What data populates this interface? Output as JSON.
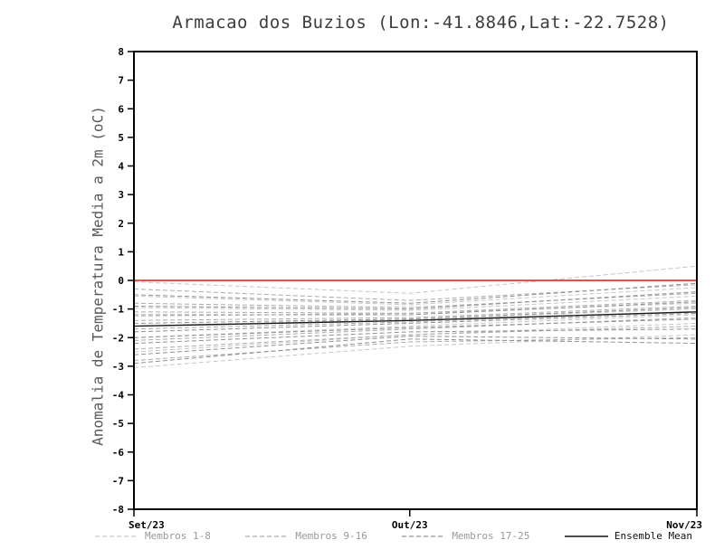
{
  "chart_data": {
    "type": "line",
    "title": "Armacao dos Buzios (Lon:-41.8846,Lat:-22.7528)",
    "ylabel": "Anomalia de Temperatura Media a 2m (oC)",
    "xlabel": "",
    "ylim": [
      -8,
      8
    ],
    "ytick_step": 1,
    "grid": false,
    "x_labels": [
      "Set/23",
      "Out/23",
      "Nov/23"
    ],
    "x_positions": [
      0,
      0.49,
      1
    ],
    "zero_line": {
      "y": 0,
      "color": "#e03a30"
    },
    "groups": [
      {
        "name": "Membros 1-8",
        "color": "#c6c6c6"
      },
      {
        "name": "Membros 9-16",
        "color": "#ababab"
      },
      {
        "name": "Membros 17-25",
        "color": "#909090"
      }
    ],
    "series": [
      {
        "name": "Membro 1",
        "group": "Membros 1-8",
        "style": "dashed",
        "values": [
          -0.05,
          -0.45,
          0.5
        ]
      },
      {
        "name": "Membro 2",
        "group": "Membros 1-8",
        "style": "dashed",
        "values": [
          -0.55,
          -0.85,
          -0.25
        ]
      },
      {
        "name": "Membro 3",
        "group": "Membros 1-8",
        "style": "dashed",
        "values": [
          -0.95,
          -1.05,
          -0.55
        ]
      },
      {
        "name": "Membro 4",
        "group": "Membros 1-8",
        "style": "dashed",
        "values": [
          -1.25,
          -1.15,
          -0.8
        ]
      },
      {
        "name": "Membro 5",
        "group": "Membros 1-8",
        "style": "dashed",
        "values": [
          -1.6,
          -1.35,
          -1.0
        ]
      },
      {
        "name": "Membro 6",
        "group": "Membros 1-8",
        "style": "dashed",
        "values": [
          -2.0,
          -1.6,
          -1.2
        ]
      },
      {
        "name": "Membro 7",
        "group": "Membros 1-8",
        "style": "dashed",
        "values": [
          -2.5,
          -1.9,
          -1.5
        ]
      },
      {
        "name": "Membro 8",
        "group": "Membros 1-8",
        "style": "dashed",
        "values": [
          -3.05,
          -2.3,
          -1.9
        ]
      },
      {
        "name": "Membro 9",
        "group": "Membros 9-16",
        "style": "dashed",
        "values": [
          -0.3,
          -0.7,
          -0.15
        ]
      },
      {
        "name": "Membro 10",
        "group": "Membros 9-16",
        "style": "dashed",
        "values": [
          -0.8,
          -0.95,
          -0.45
        ]
      },
      {
        "name": "Membro 11",
        "group": "Membros 9-16",
        "style": "dashed",
        "values": [
          -1.1,
          -1.15,
          -0.7
        ]
      },
      {
        "name": "Membro 12",
        "group": "Membros 9-16",
        "style": "dashed",
        "values": [
          -1.4,
          -1.3,
          -0.9
        ]
      },
      {
        "name": "Membro 13",
        "group": "Membros 9-16",
        "style": "dashed",
        "values": [
          -1.7,
          -1.45,
          -1.1
        ]
      },
      {
        "name": "Membro 14",
        "group": "Membros 9-16",
        "style": "dashed",
        "values": [
          -2.1,
          -1.7,
          -1.3
        ]
      },
      {
        "name": "Membro 15",
        "group": "Membros 9-16",
        "style": "dashed",
        "values": [
          -2.4,
          -1.9,
          -1.6
        ]
      },
      {
        "name": "Membro 16",
        "group": "Membros 9-16",
        "style": "dashed",
        "values": [
          -2.8,
          -2.15,
          -2.0
        ]
      },
      {
        "name": "Membro 17",
        "group": "Membros 17-25",
        "style": "dashed",
        "values": [
          -0.5,
          -0.8,
          -0.1
        ]
      },
      {
        "name": "Membro 18",
        "group": "Membros 17-25",
        "style": "dashed",
        "values": [
          -0.9,
          -1.0,
          -0.4
        ]
      },
      {
        "name": "Membro 19",
        "group": "Membros 17-25",
        "style": "dashed",
        "values": [
          -1.2,
          -1.2,
          -0.75
        ]
      },
      {
        "name": "Membro 20",
        "group": "Membros 17-25",
        "style": "dashed",
        "values": [
          -1.5,
          -1.35,
          -0.95
        ]
      },
      {
        "name": "Membro 21",
        "group": "Membros 17-25",
        "style": "dashed",
        "values": [
          -1.8,
          -1.5,
          -1.15
        ]
      },
      {
        "name": "Membro 22",
        "group": "Membros 17-25",
        "style": "dashed",
        "values": [
          -2.0,
          -1.65,
          -1.35
        ]
      },
      {
        "name": "Membro 23",
        "group": "Membros 17-25",
        "style": "dashed",
        "values": [
          -2.2,
          -1.8,
          -1.7
        ]
      },
      {
        "name": "Membro 24",
        "group": "Membros 17-25",
        "style": "dashed",
        "values": [
          -2.6,
          -1.95,
          -2.05
        ]
      },
      {
        "name": "Membro 25",
        "group": "Membros 17-25",
        "style": "dashed",
        "values": [
          -2.9,
          -2.05,
          -2.2
        ]
      },
      {
        "name": "Ensemble Mean",
        "group": "mean",
        "style": "solid",
        "color": "#1a1a1a",
        "values": [
          -1.6,
          -1.4,
          -1.1
        ]
      }
    ],
    "legend": [
      {
        "label": "Membros 1-8",
        "color": "#c6c6c6",
        "style": "dashed",
        "text_color": "#9a9a9a"
      },
      {
        "label": "Membros 9-16",
        "color": "#ababab",
        "style": "dashed",
        "text_color": "#9a9a9a"
      },
      {
        "label": "Membros 17-25",
        "color": "#909090",
        "style": "dashed",
        "text_color": "#9a9a9a"
      },
      {
        "label": "Ensemble Mean",
        "color": "#111111",
        "style": "solid",
        "text_color": "#111111"
      }
    ]
  }
}
